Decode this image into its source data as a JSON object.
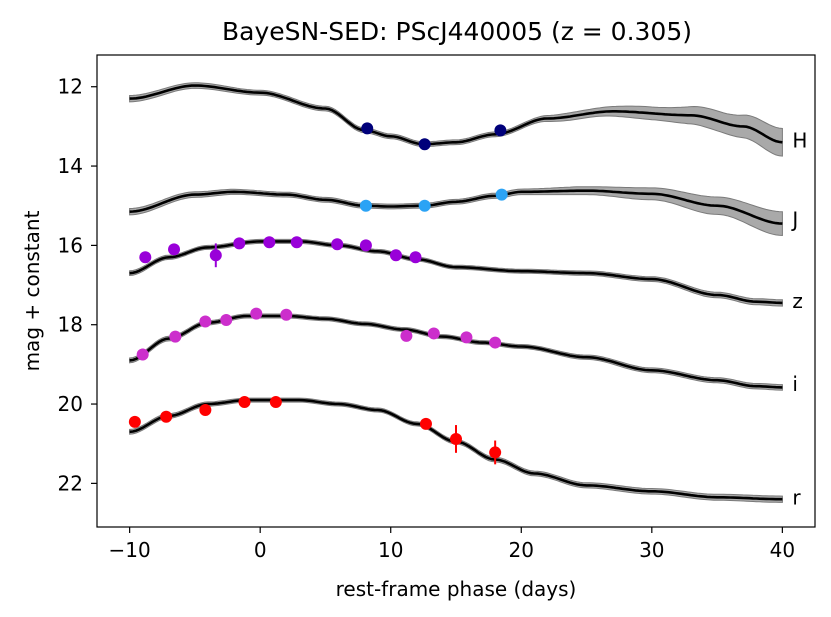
{
  "chart_data": {
    "type": "line",
    "title": "BayeSN-SED: PScJ440005 (z = 0.305)",
    "xlabel": "rest-frame phase (days)",
    "ylabel": "mag + constant",
    "xlim": [
      -12.5,
      42.5
    ],
    "ylim": [
      23.1,
      11.2
    ],
    "y_inverted": true,
    "xticks": [
      -10,
      0,
      10,
      20,
      30,
      40
    ],
    "xtick_labels": [
      "−10",
      "0",
      "10",
      "20",
      "30",
      "40"
    ],
    "yticks": [
      12,
      14,
      16,
      18,
      20,
      22
    ],
    "ytick_labels": [
      "12",
      "14",
      "16",
      "18",
      "20",
      "22"
    ],
    "grid": false,
    "series": [
      {
        "name": "H",
        "label": "H",
        "color": "#00007a",
        "label_y": 13.35,
        "model": [
          [
            -10,
            12.3
          ],
          [
            -5,
            11.97
          ],
          [
            0,
            12.15
          ],
          [
            5,
            12.55
          ],
          [
            8,
            13.1
          ],
          [
            10,
            13.25
          ],
          [
            12.5,
            13.45
          ],
          [
            15,
            13.4
          ],
          [
            18,
            13.2
          ],
          [
            22,
            12.8
          ],
          [
            27,
            12.62
          ],
          [
            33,
            12.72
          ],
          [
            37,
            13.0
          ],
          [
            40,
            13.4
          ]
        ],
        "band": [
          [
            -10,
            0.08
          ],
          [
            -5,
            0.07
          ],
          [
            0,
            0.06
          ],
          [
            5,
            0.06
          ],
          [
            10,
            0.06
          ],
          [
            15,
            0.06
          ],
          [
            20,
            0.06
          ],
          [
            25,
            0.1
          ],
          [
            30,
            0.16
          ],
          [
            35,
            0.25
          ],
          [
            40,
            0.35
          ]
        ],
        "points": [
          {
            "x": 8.2,
            "y": 13.05,
            "err": 0
          },
          {
            "x": 12.6,
            "y": 13.45,
            "err": 0
          },
          {
            "x": 18.4,
            "y": 13.1,
            "err": 0
          }
        ]
      },
      {
        "name": "J",
        "label": "J",
        "color": "#2ba3f5",
        "label_y": 15.35,
        "model": [
          [
            -10,
            15.15
          ],
          [
            -5,
            14.72
          ],
          [
            -2,
            14.65
          ],
          [
            2,
            14.72
          ],
          [
            5,
            14.85
          ],
          [
            8,
            15.0
          ],
          [
            10,
            15.02
          ],
          [
            12.5,
            15.0
          ],
          [
            15,
            14.9
          ],
          [
            18,
            14.75
          ],
          [
            20,
            14.65
          ],
          [
            25,
            14.62
          ],
          [
            30,
            14.7
          ],
          [
            35,
            15.0
          ],
          [
            40,
            15.45
          ]
        ],
        "band": [
          [
            -10,
            0.08
          ],
          [
            -5,
            0.07
          ],
          [
            0,
            0.06
          ],
          [
            5,
            0.06
          ],
          [
            10,
            0.06
          ],
          [
            15,
            0.06
          ],
          [
            20,
            0.07
          ],
          [
            25,
            0.1
          ],
          [
            30,
            0.15
          ],
          [
            35,
            0.22
          ],
          [
            40,
            0.3
          ]
        ],
        "points": [
          {
            "x": 8.1,
            "y": 15.0,
            "err": 0
          },
          {
            "x": 12.6,
            "y": 15.0,
            "err": 0
          },
          {
            "x": 18.5,
            "y": 14.72,
            "err": 0
          }
        ]
      },
      {
        "name": "z",
        "label": "z",
        "color": "#9900d9",
        "label_y": 17.4,
        "model": [
          [
            -10,
            16.7
          ],
          [
            -7,
            16.3
          ],
          [
            -4,
            16.05
          ],
          [
            0,
            15.9
          ],
          [
            3,
            15.9
          ],
          [
            6,
            16.0
          ],
          [
            9,
            16.15
          ],
          [
            12,
            16.35
          ],
          [
            15,
            16.55
          ],
          [
            20,
            16.65
          ],
          [
            25,
            16.7
          ],
          [
            30,
            16.85
          ],
          [
            35,
            17.25
          ],
          [
            38,
            17.42
          ],
          [
            40,
            17.45
          ]
        ],
        "band": [
          [
            -10,
            0.06
          ],
          [
            -5,
            0.05
          ],
          [
            0,
            0.05
          ],
          [
            10,
            0.05
          ],
          [
            20,
            0.05
          ],
          [
            30,
            0.06
          ],
          [
            35,
            0.07
          ],
          [
            40,
            0.08
          ]
        ],
        "points": [
          {
            "x": -8.8,
            "y": 16.3,
            "err": 0.1
          },
          {
            "x": -6.6,
            "y": 16.1,
            "err": 0.1
          },
          {
            "x": -3.4,
            "y": 16.25,
            "err": 0.3
          },
          {
            "x": -1.6,
            "y": 15.95,
            "err": 0.1
          },
          {
            "x": 0.7,
            "y": 15.92,
            "err": 0.1
          },
          {
            "x": 2.8,
            "y": 15.92,
            "err": 0.08
          },
          {
            "x": 5.9,
            "y": 15.97,
            "err": 0.08
          },
          {
            "x": 8.1,
            "y": 16.0,
            "err": 0.08
          },
          {
            "x": 10.4,
            "y": 16.25,
            "err": 0.08
          },
          {
            "x": 11.9,
            "y": 16.3,
            "err": 0.08
          }
        ]
      },
      {
        "name": "i",
        "label": "i",
        "color": "#cc2ecc",
        "label_y": 19.5,
        "model": [
          [
            -10,
            18.9
          ],
          [
            -7,
            18.35
          ],
          [
            -4,
            17.95
          ],
          [
            -1,
            17.78
          ],
          [
            2,
            17.78
          ],
          [
            5,
            17.85
          ],
          [
            8,
            17.98
          ],
          [
            11,
            18.12
          ],
          [
            14,
            18.3
          ],
          [
            17,
            18.45
          ],
          [
            20,
            18.55
          ],
          [
            25,
            18.82
          ],
          [
            30,
            19.15
          ],
          [
            35,
            19.4
          ],
          [
            38,
            19.55
          ],
          [
            40,
            19.58
          ]
        ],
        "band": [
          [
            -10,
            0.06
          ],
          [
            0,
            0.05
          ],
          [
            10,
            0.05
          ],
          [
            20,
            0.05
          ],
          [
            30,
            0.06
          ],
          [
            40,
            0.07
          ]
        ],
        "points": [
          {
            "x": -9.0,
            "y": 18.75,
            "err": 0.15
          },
          {
            "x": -6.5,
            "y": 18.3,
            "err": 0.08
          },
          {
            "x": -4.2,
            "y": 17.92,
            "err": 0.08
          },
          {
            "x": -2.6,
            "y": 17.88,
            "err": 0.08
          },
          {
            "x": -0.3,
            "y": 17.72,
            "err": 0.08
          },
          {
            "x": 2.0,
            "y": 17.75,
            "err": 0.08
          },
          {
            "x": 11.2,
            "y": 18.28,
            "err": 0.08
          },
          {
            "x": 13.3,
            "y": 18.22,
            "err": 0.08
          },
          {
            "x": 15.8,
            "y": 18.32,
            "err": 0.08
          },
          {
            "x": 18.0,
            "y": 18.45,
            "err": 0.08
          }
        ]
      },
      {
        "name": "r",
        "label": "r",
        "color": "#ff0000",
        "label_y": 22.35,
        "model": [
          [
            -10,
            20.7
          ],
          [
            -7,
            20.3
          ],
          [
            -4,
            20.0
          ],
          [
            -1,
            19.9
          ],
          [
            3,
            19.9
          ],
          [
            6,
            20.0
          ],
          [
            9,
            20.15
          ],
          [
            12,
            20.5
          ],
          [
            15,
            20.95
          ],
          [
            18,
            21.4
          ],
          [
            21,
            21.75
          ],
          [
            25,
            22.05
          ],
          [
            30,
            22.2
          ],
          [
            35,
            22.35
          ],
          [
            40,
            22.4
          ]
        ],
        "band": [
          [
            -10,
            0.06
          ],
          [
            0,
            0.05
          ],
          [
            10,
            0.05
          ],
          [
            20,
            0.06
          ],
          [
            30,
            0.07
          ],
          [
            40,
            0.08
          ]
        ],
        "points": [
          {
            "x": -9.6,
            "y": 20.45,
            "err": 0.1
          },
          {
            "x": -7.2,
            "y": 20.32,
            "err": 0.08
          },
          {
            "x": -4.2,
            "y": 20.15,
            "err": 0.1
          },
          {
            "x": -1.2,
            "y": 19.95,
            "err": 0.08
          },
          {
            "x": 1.2,
            "y": 19.95,
            "err": 0.08
          },
          {
            "x": 12.7,
            "y": 20.5,
            "err": 0.12
          },
          {
            "x": 15.0,
            "y": 20.88,
            "err": 0.35
          },
          {
            "x": 18.0,
            "y": 21.22,
            "err": 0.3
          }
        ]
      }
    ]
  }
}
